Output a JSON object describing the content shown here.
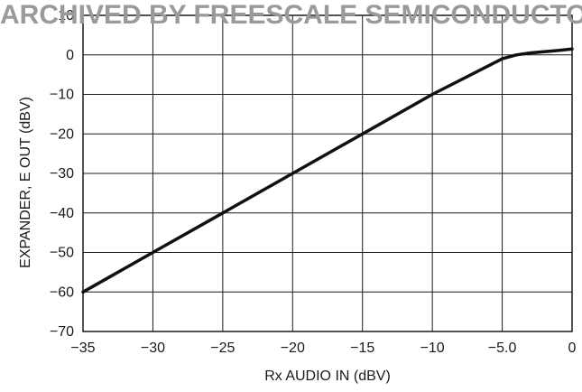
{
  "watermark": "ARCHIVED BY FREESCALE SEMICONDUCTOR",
  "chart_data": {
    "type": "line",
    "xlabel": "Rx AUDIO IN (dBV)",
    "ylabel": "EXPANDER, E OUT (dBV)",
    "xlim": [
      -35,
      0
    ],
    "ylim": [
      -70,
      10
    ],
    "xticks": [
      -35,
      -30,
      -25,
      -20,
      -15,
      -10,
      -5,
      0
    ],
    "xtick_labels": [
      "−35",
      "−30",
      "−25",
      "−20",
      "−15",
      "−10",
      "−5.0",
      "0"
    ],
    "yticks": [
      -70,
      -60,
      -50,
      -40,
      -30,
      -20,
      -10,
      0,
      10
    ],
    "ytick_labels": [
      "−70",
      "−60",
      "−50",
      "−40",
      "−30",
      "−20",
      "−10",
      "0",
      "10"
    ],
    "grid": true,
    "series": [
      {
        "x": [
          -35,
          -30,
          -25,
          -20,
          -15,
          -10,
          -5,
          -4,
          -3,
          -2,
          -1,
          0
        ],
        "y": [
          -60,
          -50,
          -40,
          -30,
          -20,
          -10,
          -1,
          0,
          0.5,
          0.8,
          1.1,
          1.5
        ]
      }
    ]
  }
}
